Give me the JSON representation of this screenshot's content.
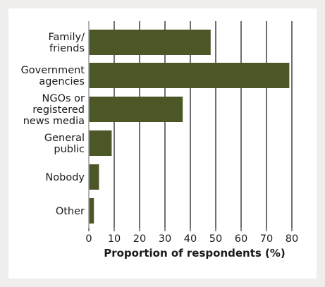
{
  "chart_data": {
    "type": "bar",
    "orientation": "horizontal",
    "title": "",
    "xlabel": "Proportion of respondents (%)",
    "ylabel": "",
    "categories": [
      [
        "Family/",
        "friends"
      ],
      [
        "Government",
        "agencies"
      ],
      [
        "NGOs or",
        "registered",
        "news media"
      ],
      [
        "General",
        "public"
      ],
      [
        "Nobody"
      ],
      [
        "Other"
      ]
    ],
    "values": [
      48,
      79,
      37,
      9,
      4,
      2
    ],
    "xlim": [
      0,
      80
    ],
    "xticks": [
      "0",
      "10",
      "20",
      "30",
      "40",
      "50",
      "60",
      "70",
      "80"
    ],
    "grid": true,
    "colors": {
      "bar": "#4c5727",
      "gridline": "#111111",
      "baseline": "#9a9a9a",
      "background": "#efeeed"
    }
  }
}
